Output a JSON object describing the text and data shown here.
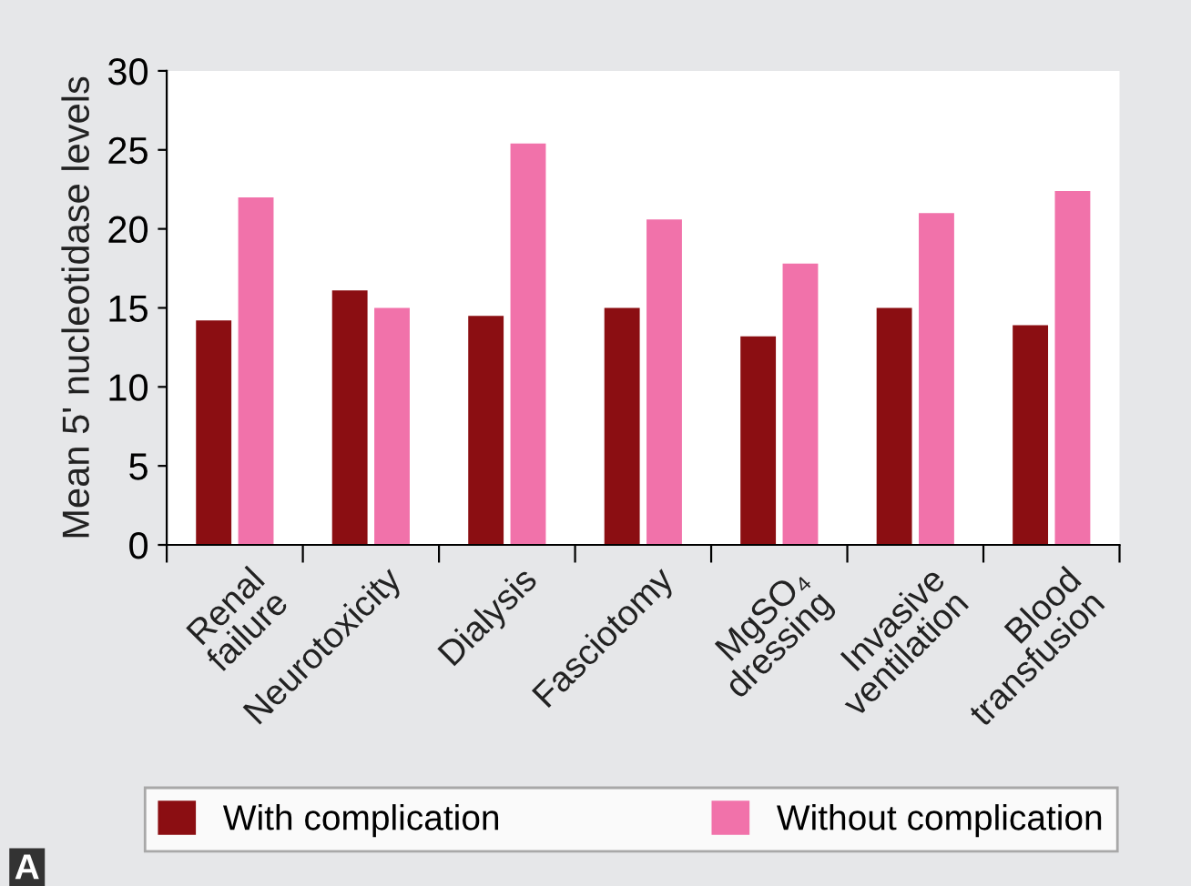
{
  "chart_data": {
    "type": "bar",
    "ylabel": "Mean 5' nucleotidase levels",
    "categories": [
      "Renal\nfailure",
      "Neurotoxicity",
      "Dialysis",
      "Fasciotomy",
      "MgSO₄\ndressing",
      "Invasive\nventilation",
      "Blood\ntransfusion"
    ],
    "series": [
      {
        "name": "With complication",
        "color": "#8b0e12",
        "values": [
          14.2,
          16.1,
          14.5,
          15.0,
          13.2,
          15.0,
          13.9
        ]
      },
      {
        "name": "Without complication",
        "color": "#f172aa",
        "values": [
          22.0,
          15.0,
          25.4,
          20.6,
          17.8,
          21.0,
          22.4
        ]
      }
    ],
    "ylim": [
      0,
      30
    ],
    "yticks": [
      0,
      5,
      10,
      15,
      20,
      25,
      30
    ],
    "grid": false,
    "legend": "bottom",
    "annotations": [
      "A"
    ]
  }
}
